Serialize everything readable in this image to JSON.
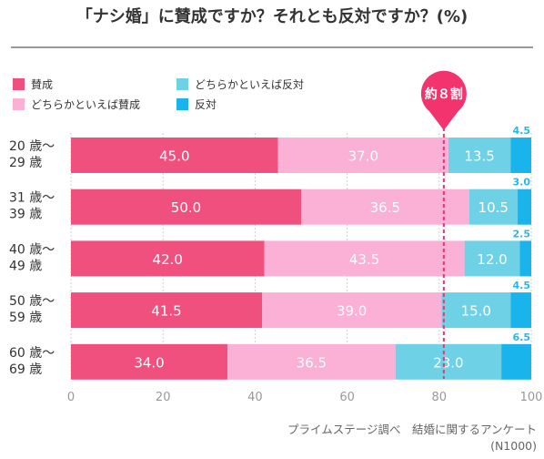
{
  "chart_data": {
    "type": "bar",
    "orientation": "horizontal-stacked",
    "title": "「ナシ婚」に賛成ですか？それとも反対ですか？(%)",
    "categories": [
      "20 歳〜\n29 歳",
      "31 歳〜\n39 歳",
      "40 歳〜\n49 歳",
      "50 歳〜\n59 歳",
      "60 歳〜\n69 歳"
    ],
    "series": [
      {
        "name": "賛成",
        "color": "#f0507e",
        "values": [
          45.0,
          50.0,
          42.0,
          41.5,
          34.0
        ]
      },
      {
        "name": "どちらかといえば賛成",
        "color": "#fbb0d6",
        "values": [
          37.0,
          36.5,
          43.5,
          39.0,
          36.5
        ]
      },
      {
        "name": "どちらかといえば反対",
        "color": "#6fd1e6",
        "values": [
          13.5,
          10.5,
          12.0,
          15.0,
          23.0
        ]
      },
      {
        "name": "反対",
        "color": "#1ab4ec",
        "values": [
          4.5,
          3.0,
          2.5,
          4.5,
          6.5
        ]
      }
    ],
    "xlim": [
      0,
      100
    ],
    "xticks": [
      0,
      20,
      40,
      60,
      80,
      100
    ],
    "grid": true,
    "legend_placement": "top-left",
    "annotation": {
      "text": "約８割",
      "x": 81,
      "color": "#f2336e"
    },
    "source": "プライムステージ調べ　結婚に関するアンケート",
    "sample": "(N1000)"
  }
}
